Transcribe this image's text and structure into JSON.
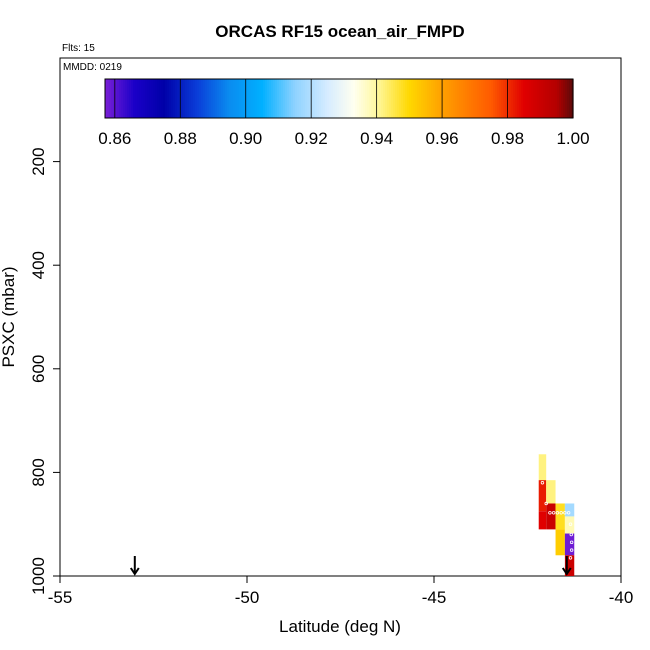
{
  "chart_data": {
    "type": "heatmap",
    "title": "ORCAS RF15 ocean_air_FMPD",
    "flights_label": "Flts: 15",
    "mmdd_label": "MMDD: 0219",
    "xlabel": "Latitude (deg N)",
    "ylabel": "PSXC (mbar)",
    "xlim": [
      -55,
      -40
    ],
    "ylim": [
      1000,
      0
    ],
    "x_ticks": [
      -55,
      -50,
      -45,
      -40
    ],
    "x_tick_labels": [
      "-55",
      "-50",
      "-45",
      "-40"
    ],
    "y_ticks": [
      200,
      400,
      600,
      800,
      1000
    ],
    "y_tick_labels": [
      "200",
      "400",
      "600",
      "800",
      "1000"
    ],
    "colorbar": {
      "range": [
        0.857,
        1.0
      ],
      "ticks": [
        0.86,
        0.88,
        0.9,
        0.92,
        0.94,
        0.96,
        0.98,
        1.0
      ],
      "tick_labels": [
        "0.86",
        "0.88",
        "0.90",
        "0.92",
        "0.94",
        "0.96",
        "0.98",
        "1.00"
      ],
      "stops": [
        {
          "v": 0.857,
          "c": "#7a1fd6"
        },
        {
          "v": 0.866,
          "c": "#1a00c8"
        },
        {
          "v": 0.875,
          "c": "#0000a8"
        },
        {
          "v": 0.885,
          "c": "#0a3cd8"
        },
        {
          "v": 0.895,
          "c": "#0a8cf0"
        },
        {
          "v": 0.905,
          "c": "#00b0ff"
        },
        {
          "v": 0.915,
          "c": "#8ed2ff"
        },
        {
          "v": 0.925,
          "c": "#d6ecff"
        },
        {
          "v": 0.933,
          "c": "#fffff0"
        },
        {
          "v": 0.94,
          "c": "#fff8a0"
        },
        {
          "v": 0.95,
          "c": "#ffd800"
        },
        {
          "v": 0.96,
          "c": "#ffa000"
        },
        {
          "v": 0.975,
          "c": "#ff5a00"
        },
        {
          "v": 0.985,
          "c": "#e00000"
        },
        {
          "v": 0.995,
          "c": "#b40000"
        },
        {
          "v": 1.0,
          "c": "#5a0a0a"
        }
      ]
    },
    "cells": [
      {
        "lat0": -42.2,
        "lat1": -42.0,
        "p0": 765,
        "p1": 815,
        "value": 0.942
      },
      {
        "lat0": -42.2,
        "lat1": -42.0,
        "p0": 815,
        "p1": 875,
        "value": 0.982
      },
      {
        "lat0": -42.2,
        "lat1": -42.0,
        "p0": 875,
        "p1": 910,
        "value": 0.985
      },
      {
        "lat0": -42.0,
        "lat1": -41.75,
        "p0": 815,
        "p1": 860,
        "value": 0.942
      },
      {
        "lat0": -42.0,
        "lat1": -41.75,
        "p0": 860,
        "p1": 910,
        "value": 0.99
      },
      {
        "lat0": -41.75,
        "lat1": -41.5,
        "p0": 860,
        "p1": 910,
        "value": 0.948
      },
      {
        "lat0": -41.75,
        "lat1": -41.5,
        "p0": 910,
        "p1": 960,
        "value": 0.952
      },
      {
        "lat0": -41.5,
        "lat1": -41.25,
        "p0": 860,
        "p1": 885,
        "value": 0.918
      },
      {
        "lat0": -41.5,
        "lat1": -41.25,
        "p0": 885,
        "p1": 918,
        "value": 0.938
      },
      {
        "lat0": -41.5,
        "lat1": -41.25,
        "p0": 918,
        "p1": 960,
        "value": 0.858
      },
      {
        "lat0": -41.5,
        "lat1": -41.25,
        "p0": 960,
        "p1": 1000,
        "value": 0.99
      }
    ],
    "trace": [
      {
        "lat": -42.1,
        "p": 820
      },
      {
        "lat": -42.0,
        "p": 860
      },
      {
        "lat": -41.9,
        "p": 878
      },
      {
        "lat": -41.8,
        "p": 878
      },
      {
        "lat": -41.7,
        "p": 878
      },
      {
        "lat": -41.6,
        "p": 878
      },
      {
        "lat": -41.5,
        "p": 878
      },
      {
        "lat": -41.4,
        "p": 878
      },
      {
        "lat": -41.35,
        "p": 900
      },
      {
        "lat": -41.33,
        "p": 920
      },
      {
        "lat": -41.32,
        "p": 935
      },
      {
        "lat": -41.32,
        "p": 950
      },
      {
        "lat": -41.35,
        "p": 965
      }
    ],
    "arrows": [
      {
        "lat": -53.0
      },
      {
        "lat": -41.45
      }
    ]
  }
}
